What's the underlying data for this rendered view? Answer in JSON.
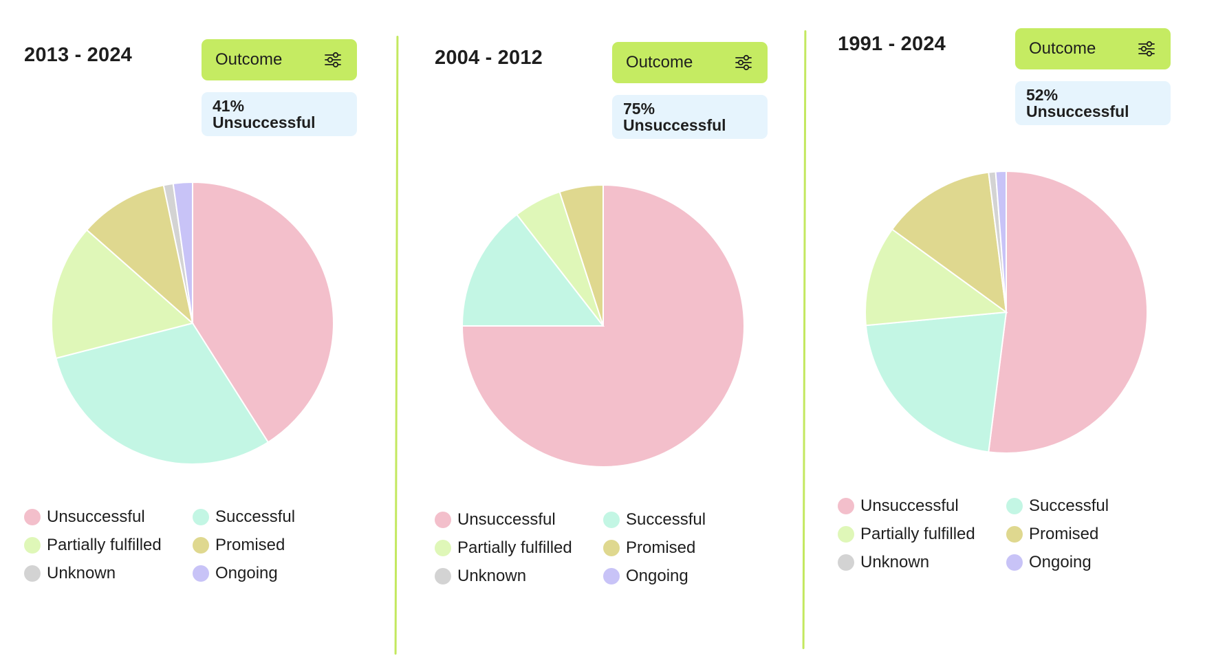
{
  "filter_button_label": "Outcome",
  "icons": {
    "filter": "sliders-icon"
  },
  "legend_labels": [
    "Unsuccessful",
    "Successful",
    "Partially fulfilled",
    "Promised",
    "Unknown",
    "Ongoing"
  ],
  "colors": {
    "Unsuccessful": "#f3bfcb",
    "Successful": "#c3f6e4",
    "Partially fulfilled": "#dff7b8",
    "Promised": "#dfd88f",
    "Unknown": "#d3d3d3",
    "Ongoing": "#c8c3f7",
    "accent": "#c5eb62",
    "badge_bg": "#e6f4fd"
  },
  "chart_data": [
    {
      "type": "pie",
      "title": "2013 - 2024",
      "stat": {
        "value": "41%",
        "label": "Unsuccessful"
      },
      "categories": [
        "Unsuccessful",
        "Successful",
        "Partially fulfilled",
        "Promised",
        "Unknown",
        "Ongoing"
      ],
      "values": [
        41,
        30,
        15.5,
        10.2,
        1.1,
        2.2
      ]
    },
    {
      "type": "pie",
      "title": "2004 - 2012",
      "stat": {
        "value": "75%",
        "label": "Unsuccessful"
      },
      "categories": [
        "Unsuccessful",
        "Successful",
        "Partially fulfilled",
        "Promised",
        "Unknown",
        "Ongoing"
      ],
      "values": [
        75,
        14.5,
        5.5,
        5,
        0,
        0
      ]
    },
    {
      "type": "pie",
      "title": "1991 - 2024",
      "stat": {
        "value": "52%",
        "label": "Unsuccessful"
      },
      "categories": [
        "Unsuccessful",
        "Successful",
        "Partially fulfilled",
        "Promised",
        "Unknown",
        "Ongoing"
      ],
      "values": [
        52,
        21.5,
        11.5,
        13,
        0.8,
        1.2
      ]
    }
  ]
}
